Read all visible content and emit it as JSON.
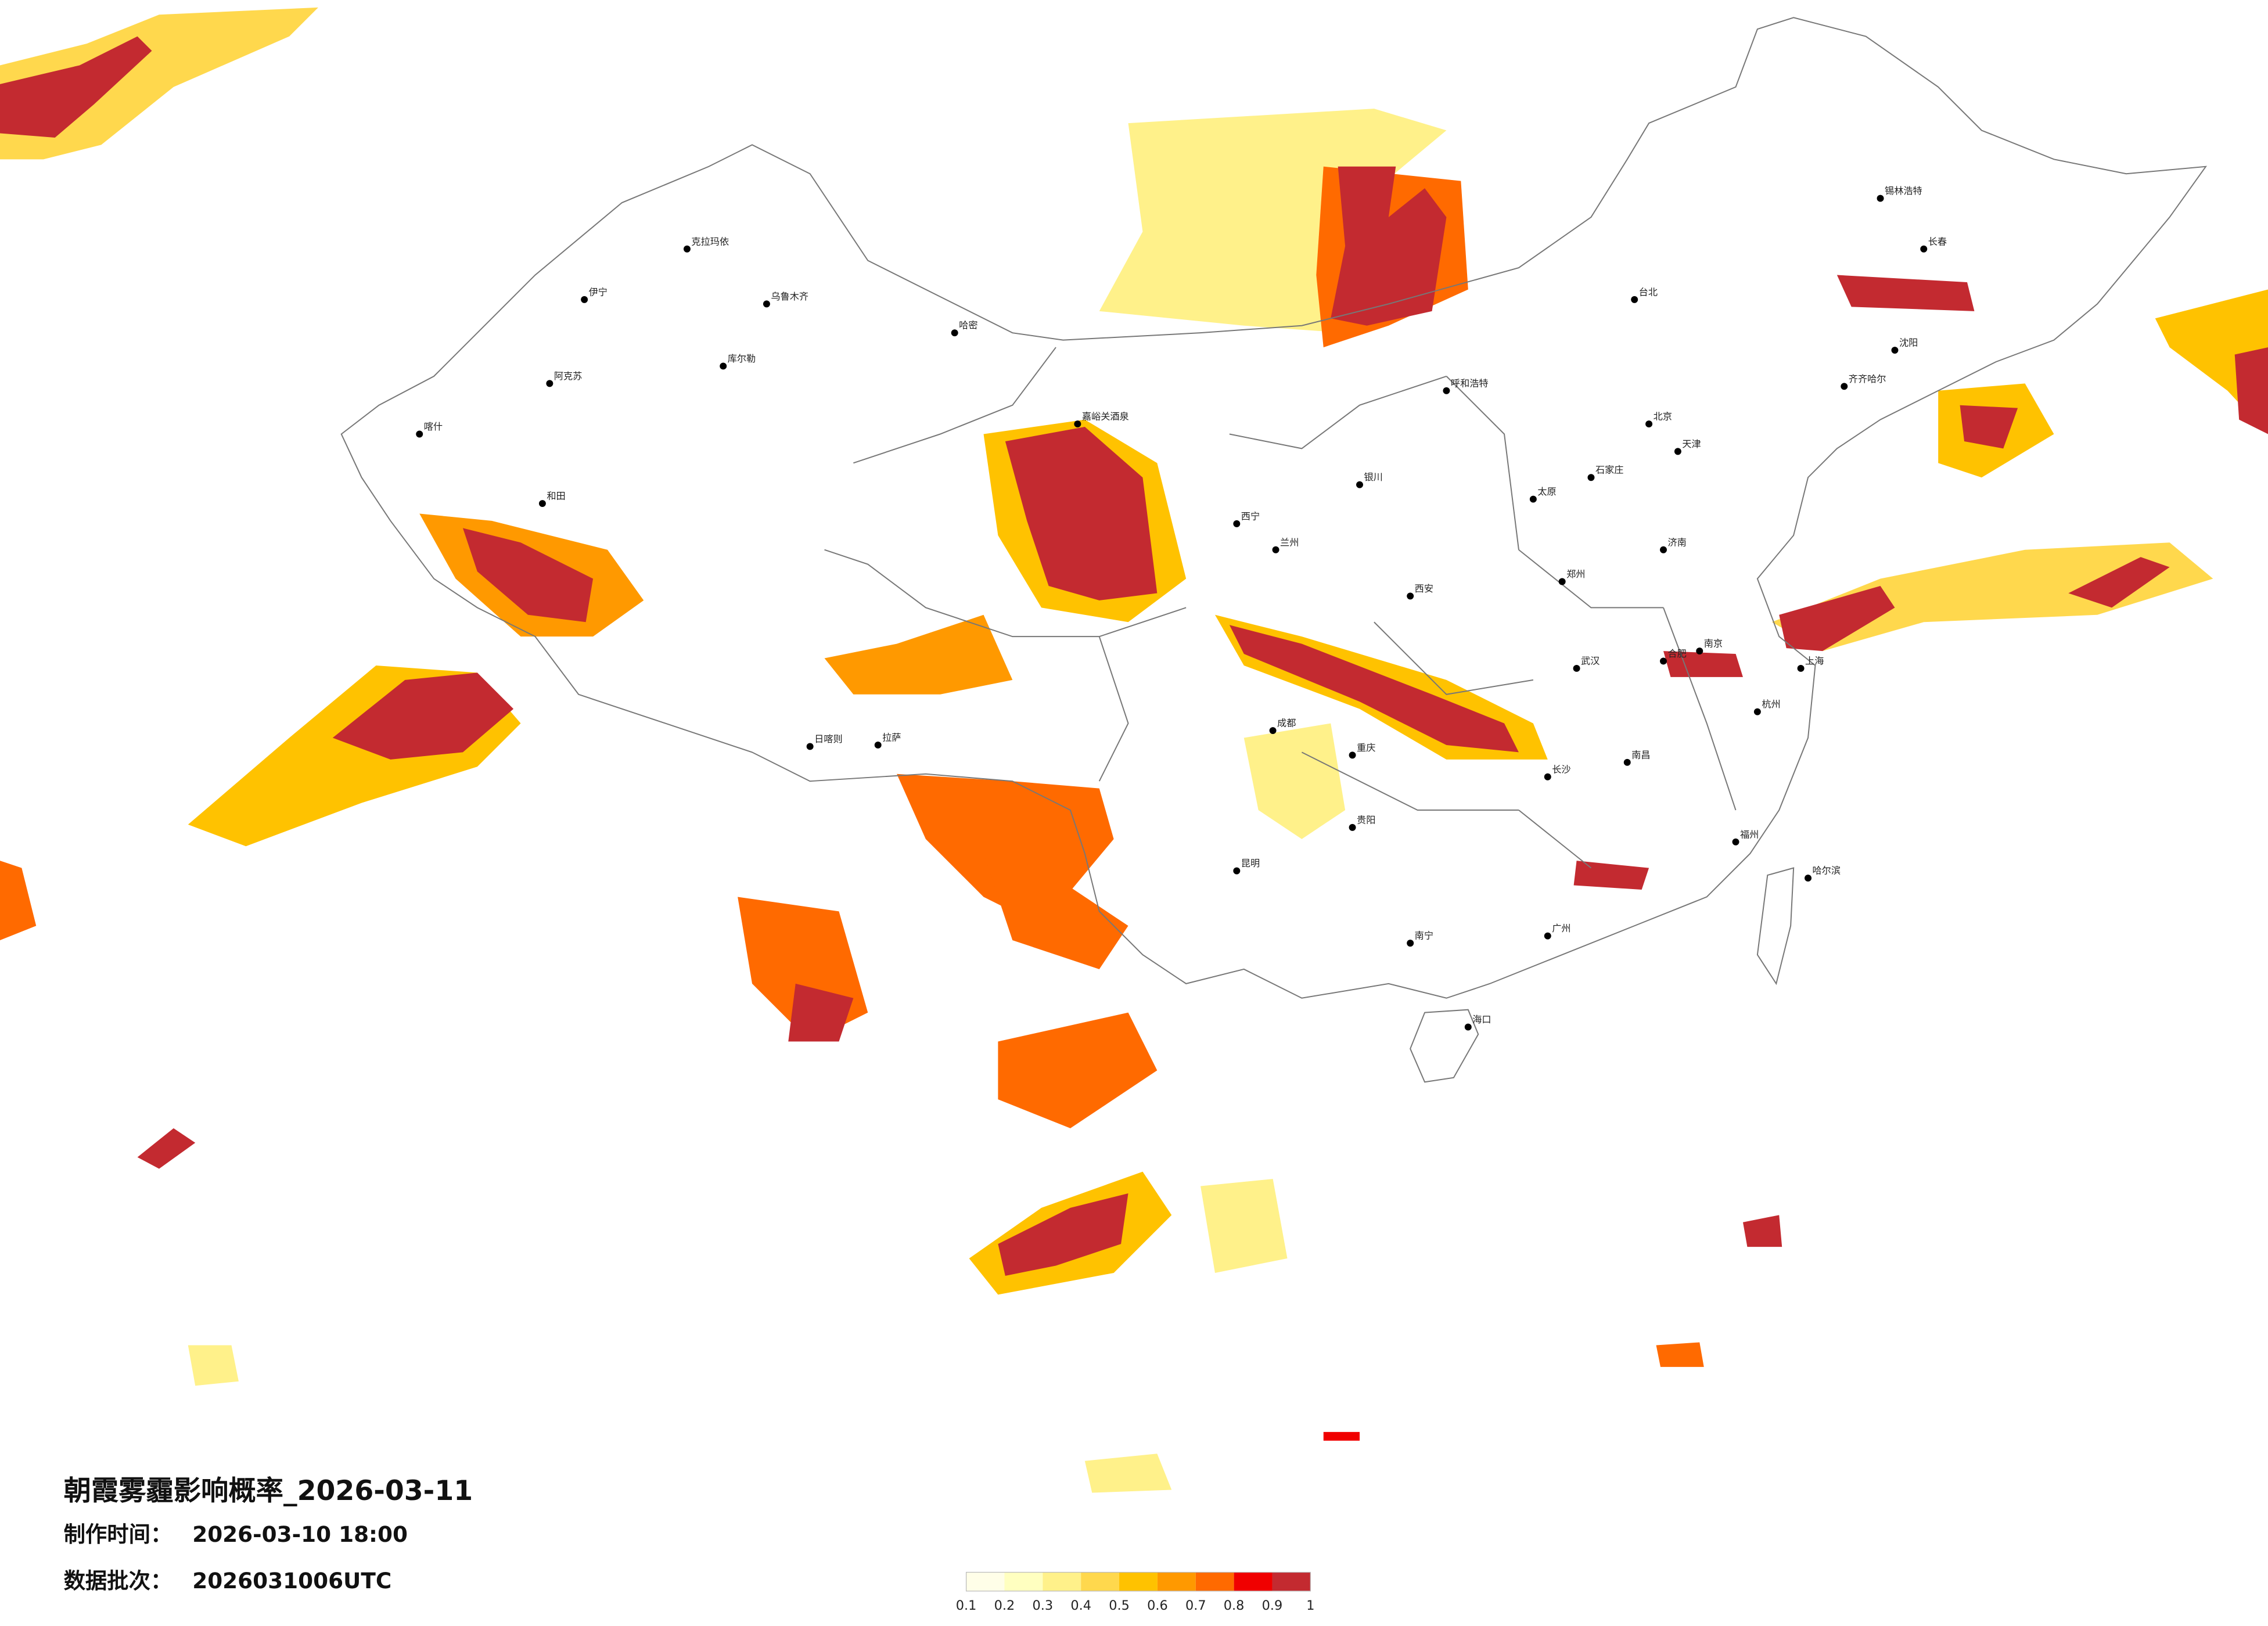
{
  "header": {
    "title": "朝霞雾霾影响概率_2026-03-11",
    "made_label": "制作时间：",
    "made_value": "2026-03-10 18:00",
    "batch_label": "数据批次：",
    "batch_value": "2026031006UTC"
  },
  "legend": {
    "levels": [
      0.1,
      0.2,
      0.3,
      0.4,
      0.5,
      0.6,
      0.7,
      0.8,
      0.9,
      1
    ],
    "colors": [
      "#fffee8",
      "#ffffc0",
      "#fff18a",
      "#ffd84d",
      "#ffc200",
      "#ff9900",
      "#ff6a00",
      "#f00000",
      "#c32a30"
    ]
  },
  "cities": [
    "乌鲁木齐",
    "克拉玛依",
    "哈密",
    "伊宁",
    "库尔勒",
    "阿克苏",
    "喀什",
    "和田",
    "拉萨",
    "日喀则",
    "嘉峪关酒泉",
    "西宁",
    "兰州",
    "银川",
    "呼和浩特",
    "北京",
    "天津",
    "石家庄",
    "太原",
    "济南",
    "郑州",
    "西安",
    "成都",
    "重庆",
    "武汉",
    "长沙",
    "南昌",
    "合肥",
    "南京",
    "上海",
    "杭州",
    "福州",
    "广州",
    "南宁",
    "昆明",
    "贵阳",
    "海口",
    "哈尔滨",
    "长春",
    "沈阳",
    "齐齐哈尔",
    "锡林浩特",
    "台北"
  ]
}
